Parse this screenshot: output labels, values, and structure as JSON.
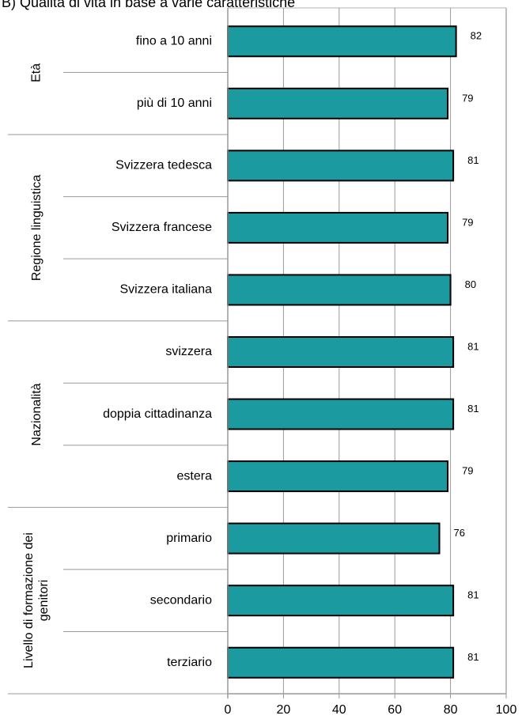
{
  "chart_data": {
    "type": "bar",
    "orientation": "horizontal",
    "title": "B) Qualità di vita in base a varie caratteristiche",
    "color": "#1b9aa0",
    "groups": [
      {
        "name": "Età",
        "categories": [
          "fino a 10 anni",
          "più di 10 anni"
        ],
        "values": [
          82,
          79
        ]
      },
      {
        "name": "Regione linguistica",
        "categories": [
          "Svizzera tedesca",
          "Svizzera francese",
          "Svizzera italiana"
        ],
        "values": [
          81,
          79,
          80
        ]
      },
      {
        "name": "Nazionalità",
        "categories": [
          "svizzera",
          "doppia cittadinanza",
          "estera"
        ],
        "values": [
          81,
          81,
          79
        ]
      },
      {
        "name": "Livello di formazione dei genitori",
        "categories": [
          "primario",
          "secondario",
          "terziario"
        ],
        "values": [
          76,
          81,
          81
        ]
      }
    ],
    "xlim": [
      0,
      100
    ],
    "xticks": [
      0,
      20,
      40,
      60,
      80,
      100
    ],
    "grid": true
  }
}
